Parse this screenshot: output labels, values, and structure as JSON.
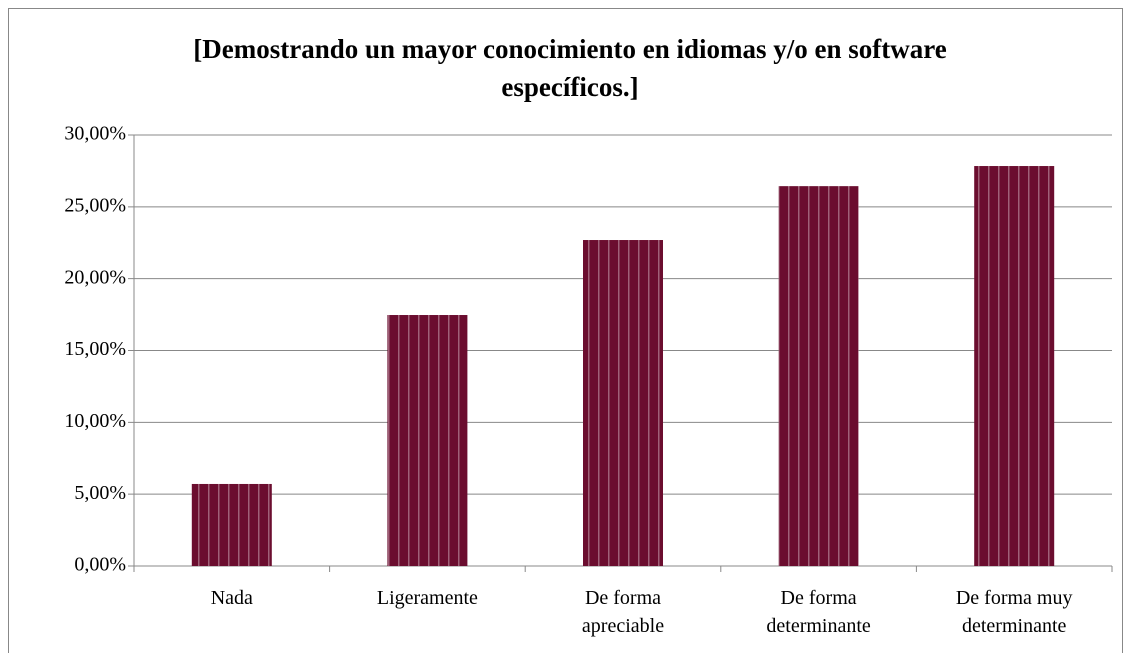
{
  "chart_data": {
    "type": "bar",
    "title": "[Demostrando un mayor conocimiento en idiomas y/o en software específicos.]",
    "categories": [
      "Nada",
      "Ligeramente",
      "De forma apreciable",
      "De forma determinante",
      "De forma muy determinante"
    ],
    "values": [
      5.71,
      17.47,
      22.69,
      26.44,
      27.84
    ],
    "color": "#6b0d2f",
    "ylim": [
      0,
      30
    ],
    "yticks": [
      {
        "value": 0,
        "label": "0,00%"
      },
      {
        "value": 5,
        "label": "5,00%"
      },
      {
        "value": 10,
        "label": "10,00%"
      },
      {
        "value": 15,
        "label": "15,00%"
      },
      {
        "value": 20,
        "label": "20,00%"
      },
      {
        "value": 25,
        "label": "25,00%"
      },
      {
        "value": 30,
        "label": "30,00%"
      }
    ],
    "grid": true
  }
}
